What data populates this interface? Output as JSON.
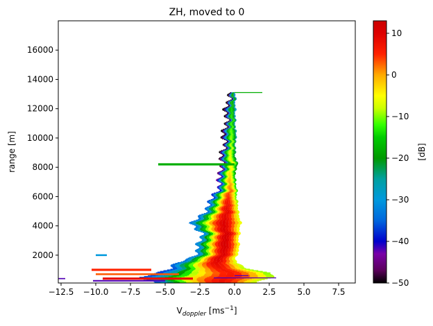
{
  "chart_data": {
    "type": "heatmap",
    "title": "ZH, moved to 0",
    "xlabel": {
      "base": "V",
      "sub": "doppler",
      "unit_pre": " [ms",
      "sup": "−1",
      "unit_post": "]"
    },
    "ylabel": "range [m]",
    "xlim": [
      -12.7,
      8.7
    ],
    "ylim": [
      100,
      18000
    ],
    "xticks": [
      -12.5,
      -10.0,
      -7.5,
      -5.0,
      -2.5,
      0.0,
      2.5,
      5.0,
      7.5
    ],
    "xtick_labels": [
      "−12.5",
      "−10.0",
      "−7.5",
      "−5.0",
      "−2.5",
      "0.0",
      "2.5",
      "5.0",
      "7.5"
    ],
    "yticks": [
      2000,
      4000,
      6000,
      8000,
      10000,
      12000,
      14000,
      16000
    ],
    "ytick_labels": [
      "2000",
      "4000",
      "6000",
      "8000",
      "10000",
      "12000",
      "14000",
      "16000"
    ],
    "colorbar": {
      "label": "[dB]",
      "range": [
        -50,
        13
      ],
      "ticks": [
        -50,
        -40,
        -30,
        -20,
        -10,
        0,
        10
      ],
      "tick_labels": [
        "−50",
        "−40",
        "−30",
        "−20",
        "−10",
        "0",
        "10"
      ],
      "colormap_stops": [
        {
          "v": -50,
          "c": "#000000"
        },
        {
          "v": -47,
          "c": "#5a005a"
        },
        {
          "v": -43,
          "c": "#7a00a8"
        },
        {
          "v": -40,
          "c": "#0000cc"
        },
        {
          "v": -35,
          "c": "#0066dd"
        },
        {
          "v": -30,
          "c": "#0099dd"
        },
        {
          "v": -25,
          "c": "#00a0a0"
        },
        {
          "v": -20,
          "c": "#009900"
        },
        {
          "v": -15,
          "c": "#00cc00"
        },
        {
          "v": -12,
          "c": "#33ff00"
        },
        {
          "v": -8,
          "c": "#ccff00"
        },
        {
          "v": -5,
          "c": "#ffff00"
        },
        {
          "v": 0,
          "c": "#ffaa00"
        },
        {
          "v": 5,
          "c": "#ff2200"
        },
        {
          "v": 10,
          "c": "#dd0000"
        },
        {
          "v": 13,
          "c": "#cc0000"
        }
      ]
    },
    "spectrum_profile": [
      {
        "range": 200,
        "left": -6.0,
        "right": 1.5,
        "peak": 8
      },
      {
        "range": 500,
        "left": -7.0,
        "right": 2.8,
        "peak": 7
      },
      {
        "range": 800,
        "left": -5.5,
        "right": 2.5,
        "peak": 6
      },
      {
        "range": 1100,
        "left": -4.5,
        "right": 0.8,
        "peak": 7
      },
      {
        "range": 1500,
        "left": -4.2,
        "right": 0.1,
        "peak": 9
      },
      {
        "range": 1800,
        "left": -3.3,
        "right": 0.0,
        "peak": 10
      },
      {
        "range": 2200,
        "left": -2.7,
        "right": 0.2,
        "peak": 10
      },
      {
        "range": 2600,
        "left": -2.6,
        "right": 0.3,
        "peak": 11
      },
      {
        "range": 3000,
        "left": -2.5,
        "right": 0.2,
        "peak": 11
      },
      {
        "range": 3400,
        "left": -2.4,
        "right": 0.3,
        "peak": 11
      },
      {
        "range": 3800,
        "left": -2.8,
        "right": 0.3,
        "peak": 10
      },
      {
        "range": 4200,
        "left": -3.0,
        "right": 0.4,
        "peak": 10
      },
      {
        "range": 4600,
        "left": -2.6,
        "right": 0.3,
        "peak": 9
      },
      {
        "range": 5000,
        "left": -2.2,
        "right": 0.2,
        "peak": 9
      },
      {
        "range": 5400,
        "left": -1.9,
        "right": 0.2,
        "peak": 8
      },
      {
        "range": 5800,
        "left": -1.6,
        "right": 0.1,
        "peak": 6
      },
      {
        "range": 6200,
        "left": -1.5,
        "right": 0.1,
        "peak": 4
      },
      {
        "range": 6600,
        "left": -1.2,
        "right": 0.1,
        "peak": 2
      },
      {
        "range": 7000,
        "left": -1.1,
        "right": 0.0,
        "peak": 0
      },
      {
        "range": 7400,
        "left": -1.0,
        "right": 0.0,
        "peak": -2
      },
      {
        "range": 7800,
        "left": -1.1,
        "right": 0.0,
        "peak": -4
      },
      {
        "range": 8200,
        "left": -1.0,
        "right": 0.2,
        "peak": -5
      },
      {
        "range": 8600,
        "left": -0.9,
        "right": 0.0,
        "peak": -6
      },
      {
        "range": 9000,
        "left": -0.9,
        "right": 0.0,
        "peak": -7
      },
      {
        "range": 9400,
        "left": -0.8,
        "right": 0.0,
        "peak": -8
      },
      {
        "range": 9800,
        "left": -0.8,
        "right": 0.0,
        "peak": -9
      },
      {
        "range": 10200,
        "left": -0.8,
        "right": 0.1,
        "peak": -10
      },
      {
        "range": 10600,
        "left": -0.7,
        "right": 0.0,
        "peak": -11
      },
      {
        "range": 11000,
        "left": -0.7,
        "right": 0.0,
        "peak": -12
      },
      {
        "range": 11400,
        "left": -0.6,
        "right": 0.0,
        "peak": -13
      },
      {
        "range": 11800,
        "left": -0.6,
        "right": 0.0,
        "peak": -14
      },
      {
        "range": 12200,
        "left": -0.6,
        "right": 0.0,
        "peak": -15
      },
      {
        "range": 12600,
        "left": -0.5,
        "right": 0.0,
        "peak": -16
      },
      {
        "range": 13000,
        "left": -0.4,
        "right": 0.0,
        "peak": -18
      }
    ],
    "isolated_features": [
      {
        "v_left": -5.5,
        "v_right": 0.0,
        "range": 8200,
        "height": 150,
        "dB": -18
      },
      {
        "v_left": 0.0,
        "v_right": 2.0,
        "range": 13100,
        "height": 60,
        "dB": -18
      },
      {
        "v_left": -10.0,
        "v_right": -9.2,
        "range": 2000,
        "height": 120,
        "dB": -30
      },
      {
        "v_left": -10.3,
        "v_right": -6.0,
        "range": 1000,
        "height": 150,
        "dB": 5
      },
      {
        "v_left": -10.0,
        "v_right": -4.0,
        "range": 700,
        "height": 120,
        "dB": 3
      },
      {
        "v_left": -9.5,
        "v_right": -3.0,
        "range": 400,
        "height": 150,
        "dB": 8
      },
      {
        "v_left": -10.2,
        "v_right": -5.0,
        "range": 250,
        "height": 100,
        "dB": -42
      },
      {
        "v_left": -12.7,
        "v_right": -12.2,
        "range": 400,
        "height": 80,
        "dB": -42
      },
      {
        "v_left": -1.5,
        "v_right": 3.0,
        "range": 450,
        "height": 60,
        "dB": -42
      },
      {
        "v_left": 0.0,
        "v_right": 1.0,
        "range": 600,
        "height": 60,
        "dB": -42
      }
    ]
  }
}
